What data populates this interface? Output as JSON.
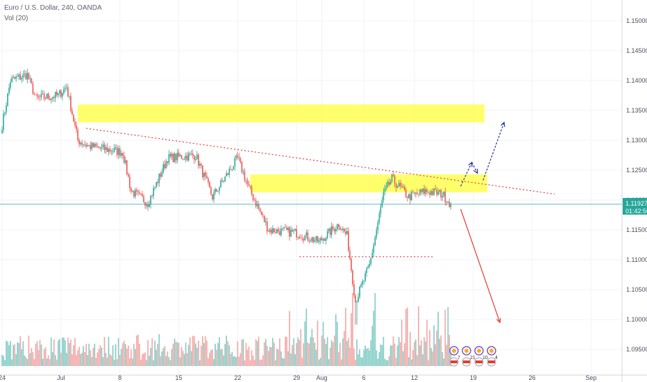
{
  "legend": {
    "symbol_line": "Euro / U.S. Dollar, 240, OANDA",
    "volume_line": "Vol (20)"
  },
  "price_label": {
    "price": "1.11927",
    "countdown": "01:42:56"
  },
  "colors": {
    "up": "#26a69a",
    "down": "#ef5350",
    "vol_up": "#80cbc4",
    "vol_down": "#f2a5a3",
    "zone": "#ffff3b",
    "trend": "#e53935",
    "arrow_up": "#283593",
    "arrow_down": "#e53935",
    "price_line": "#26a69a"
  },
  "icons": [
    "event-icon-1",
    "event-icon-2",
    "event-icon-3",
    "event-icon-4"
  ],
  "event_counts": [
    "7",
    "21",
    "10",
    "4"
  ],
  "chart_data": {
    "type": "candlestick",
    "title": "Euro / U.S. Dollar, 240, OANDA",
    "ylim": [
      1.0925,
      1.155
    ],
    "y_ticks": [
      "1.15000",
      "1.14500",
      "1.14000",
      "1.13500",
      "1.13000",
      "1.12500",
      "1.12000",
      "1.11500",
      "1.11000",
      "1.10500",
      "1.10000",
      "1.09500"
    ],
    "x_ticks": [
      "24",
      "Jul",
      "8",
      "15",
      "22",
      "29",
      "Aug",
      "6",
      "12",
      "19",
      "26",
      "Sep"
    ],
    "x_tick_day_index": [
      0,
      7,
      14,
      21,
      28,
      35,
      38,
      43,
      49,
      56,
      63,
      70
    ],
    "bars_per_day": 6,
    "last_bar_index": 320,
    "price_anchors": [
      {
        "bar": 0,
        "price": 1.1325
      },
      {
        "bar": 6,
        "price": 1.14
      },
      {
        "bar": 18,
        "price": 1.141
      },
      {
        "bar": 24,
        "price": 1.137
      },
      {
        "bar": 40,
        "price": 1.1375
      },
      {
        "bar": 46,
        "price": 1.139
      },
      {
        "bar": 54,
        "price": 1.13
      },
      {
        "bar": 62,
        "price": 1.129
      },
      {
        "bar": 86,
        "price": 1.128
      },
      {
        "bar": 92,
        "price": 1.1215
      },
      {
        "bar": 104,
        "price": 1.1195
      },
      {
        "bar": 118,
        "price": 1.127
      },
      {
        "bar": 138,
        "price": 1.1275
      },
      {
        "bar": 150,
        "price": 1.1205
      },
      {
        "bar": 168,
        "price": 1.127
      },
      {
        "bar": 176,
        "price": 1.122
      },
      {
        "bar": 190,
        "price": 1.115
      },
      {
        "bar": 210,
        "price": 1.1145
      },
      {
        "bar": 226,
        "price": 1.113
      },
      {
        "bar": 240,
        "price": 1.116
      },
      {
        "bar": 246,
        "price": 1.114
      },
      {
        "bar": 252,
        "price": 1.103
      },
      {
        "bar": 262,
        "price": 1.109
      },
      {
        "bar": 272,
        "price": 1.121
      },
      {
        "bar": 278,
        "price": 1.1235
      },
      {
        "bar": 290,
        "price": 1.1205
      },
      {
        "bar": 302,
        "price": 1.1215
      },
      {
        "bar": 314,
        "price": 1.121
      },
      {
        "bar": 320,
        "price": 1.1193
      }
    ],
    "zones": [
      {
        "from_bar": 54,
        "to_bar": 344,
        "top": 1.136,
        "bottom": 1.133
      },
      {
        "from_bar": 177,
        "to_bar": 346,
        "top": 1.1243,
        "bottom": 1.1213
      }
    ],
    "trendline": {
      "from_bar": 60,
      "from_price": 1.132,
      "to_bar": 394,
      "to_price": 1.121
    },
    "support_line": {
      "from_bar": 212,
      "to_bar": 308,
      "price": 1.1105
    },
    "arrows_up": [
      {
        "from_bar": 327,
        "from_price": 1.1223,
        "to_bar": 335,
        "to_price": 1.1263
      },
      {
        "from_bar": 335,
        "from_price": 1.1263,
        "to_bar": 339,
        "to_price": 1.1245
      },
      {
        "from_bar": 343,
        "from_price": 1.1233,
        "to_bar": 358,
        "to_price": 1.133
      }
    ],
    "arrow_down": {
      "from_bar": 327,
      "from_price": 1.1185,
      "to_bar": 355,
      "to_price": 1.0995
    }
  }
}
